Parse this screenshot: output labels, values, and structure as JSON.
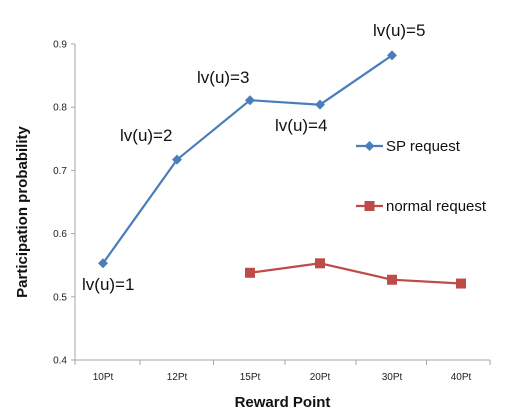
{
  "chart_data": {
    "type": "line",
    "xlabel": "Reward Point",
    "ylabel": "Participation probability",
    "categories": [
      "10Pt",
      "12Pt",
      "15Pt",
      "20Pt",
      "30Pt",
      "40Pt"
    ],
    "ylim": [
      0.4,
      0.9
    ],
    "yticks": [
      "0.4",
      "0.5",
      "0.6",
      "0.7",
      "0.8",
      "0.9"
    ],
    "legend_position": "right",
    "series": [
      {
        "name": "SP request",
        "color": "#4a7ebb",
        "marker": "diamond",
        "values": [
          0.553,
          0.717,
          0.811,
          0.804,
          0.882,
          null
        ]
      },
      {
        "name": "normal request",
        "color": "#be4b48",
        "marker": "square",
        "values": [
          null,
          null,
          0.538,
          0.553,
          0.527,
          0.521
        ]
      }
    ],
    "annotations": [
      "lv(u)=1",
      "lv(u)=2",
      "lv(u)=3",
      "lv(u)=4",
      "lv(u)=5"
    ]
  }
}
